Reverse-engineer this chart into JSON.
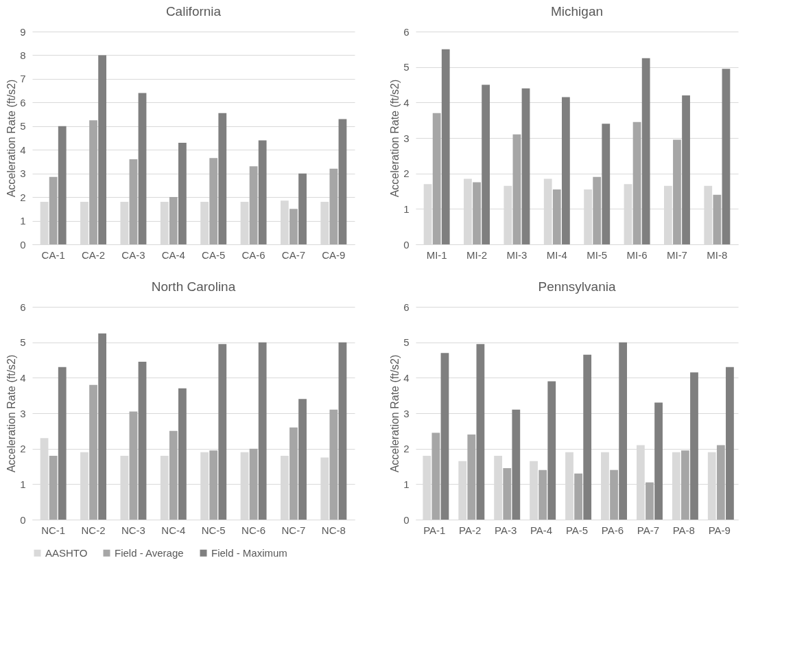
{
  "chart_data": [
    {
      "type": "bar",
      "title": "California",
      "ylabel": "Acceleration Rate (ft/s2)",
      "categories": [
        "CA-1",
        "CA-2",
        "CA-3",
        "CA-4",
        "CA-5",
        "CA-6",
        "CA-7",
        "CA-9"
      ],
      "ylim": [
        0,
        9
      ],
      "yticks": [
        0,
        1,
        2,
        3,
        4,
        5,
        6,
        7,
        8,
        9
      ],
      "grid": "y",
      "legend": "bottom",
      "series": [
        {
          "name": "AASHTO",
          "color": "#d9d9d9",
          "values": [
            1.8,
            1.8,
            1.8,
            1.8,
            1.8,
            1.8,
            1.85,
            1.8
          ]
        },
        {
          "name": "Field - Average",
          "color": "#a6a6a6",
          "values": [
            2.85,
            5.25,
            3.6,
            2.0,
            3.65,
            3.3,
            1.5,
            3.2
          ]
        },
        {
          "name": "Field - Maximum",
          "color": "#7f7f7f",
          "values": [
            5.0,
            8.0,
            6.4,
            4.3,
            5.55,
            4.4,
            3.0,
            5.3
          ]
        }
      ]
    },
    {
      "type": "bar",
      "title": "Michigan",
      "ylabel": "Acceleration Rate (ft/s2)",
      "categories": [
        "MI-1",
        "MI-2",
        "MI-3",
        "MI-4",
        "MI-5",
        "MI-6",
        "MI-7",
        "MI-8"
      ],
      "ylim": [
        0,
        6
      ],
      "yticks": [
        0,
        1,
        2,
        3,
        4,
        5,
        6
      ],
      "grid": "y",
      "legend": "bottom",
      "series": [
        {
          "name": "AASHTO",
          "color": "#d9d9d9",
          "values": [
            1.7,
            1.85,
            1.65,
            1.85,
            1.55,
            1.7,
            1.65,
            1.65
          ]
        },
        {
          "name": "Field - Average",
          "color": "#a6a6a6",
          "values": [
            3.7,
            1.75,
            3.1,
            1.55,
            1.9,
            3.45,
            2.95,
            1.4
          ]
        },
        {
          "name": "Field - Maximum",
          "color": "#7f7f7f",
          "values": [
            5.5,
            4.5,
            4.4,
            4.15,
            3.4,
            5.25,
            4.2,
            4.95
          ]
        }
      ]
    },
    {
      "type": "bar",
      "title": "North Carolina",
      "ylabel": "Acceleration Rate (ft/s2)",
      "categories": [
        "NC-1",
        "NC-2",
        "NC-3",
        "NC-4",
        "NC-5",
        "NC-6",
        "NC-7",
        "NC-8"
      ],
      "ylim": [
        0,
        6
      ],
      "yticks": [
        0,
        1,
        2,
        3,
        4,
        5,
        6
      ],
      "grid": "y",
      "legend": "bottom",
      "series": [
        {
          "name": "AASHTO",
          "color": "#d9d9d9",
          "values": [
            2.3,
            1.9,
            1.8,
            1.8,
            1.9,
            1.9,
            1.8,
            1.75
          ]
        },
        {
          "name": "Field - Average",
          "color": "#a6a6a6",
          "values": [
            1.8,
            3.8,
            3.05,
            2.5,
            1.95,
            2.0,
            2.6,
            3.1
          ]
        },
        {
          "name": "Field - Maximum",
          "color": "#7f7f7f",
          "values": [
            4.3,
            5.25,
            4.45,
            3.7,
            4.95,
            5.0,
            3.4,
            5.0
          ]
        }
      ]
    },
    {
      "type": "bar",
      "title": "Pennsylvania",
      "ylabel": "Acceleration Rate (ft/s2)",
      "categories": [
        "PA-1",
        "PA-2",
        "PA-3",
        "PA-4",
        "PA-5",
        "PA-6",
        "PA-7",
        "PA-8",
        "PA-9"
      ],
      "ylim": [
        0,
        6
      ],
      "yticks": [
        0,
        1,
        2,
        3,
        4,
        5,
        6
      ],
      "grid": "y",
      "legend": "bottom",
      "series": [
        {
          "name": "AASHTO",
          "color": "#d9d9d9",
          "values": [
            1.8,
            1.65,
            1.8,
            1.65,
            1.9,
            1.9,
            2.1,
            1.9,
            1.9
          ]
        },
        {
          "name": "Field - Average",
          "color": "#a6a6a6",
          "values": [
            2.45,
            2.4,
            1.45,
            1.4,
            1.3,
            1.4,
            1.05,
            1.95,
            2.1
          ]
        },
        {
          "name": "Field - Maximum",
          "color": "#7f7f7f",
          "values": [
            4.7,
            4.95,
            3.1,
            3.9,
            4.65,
            5.0,
            3.3,
            4.15,
            4.3
          ]
        }
      ]
    }
  ]
}
